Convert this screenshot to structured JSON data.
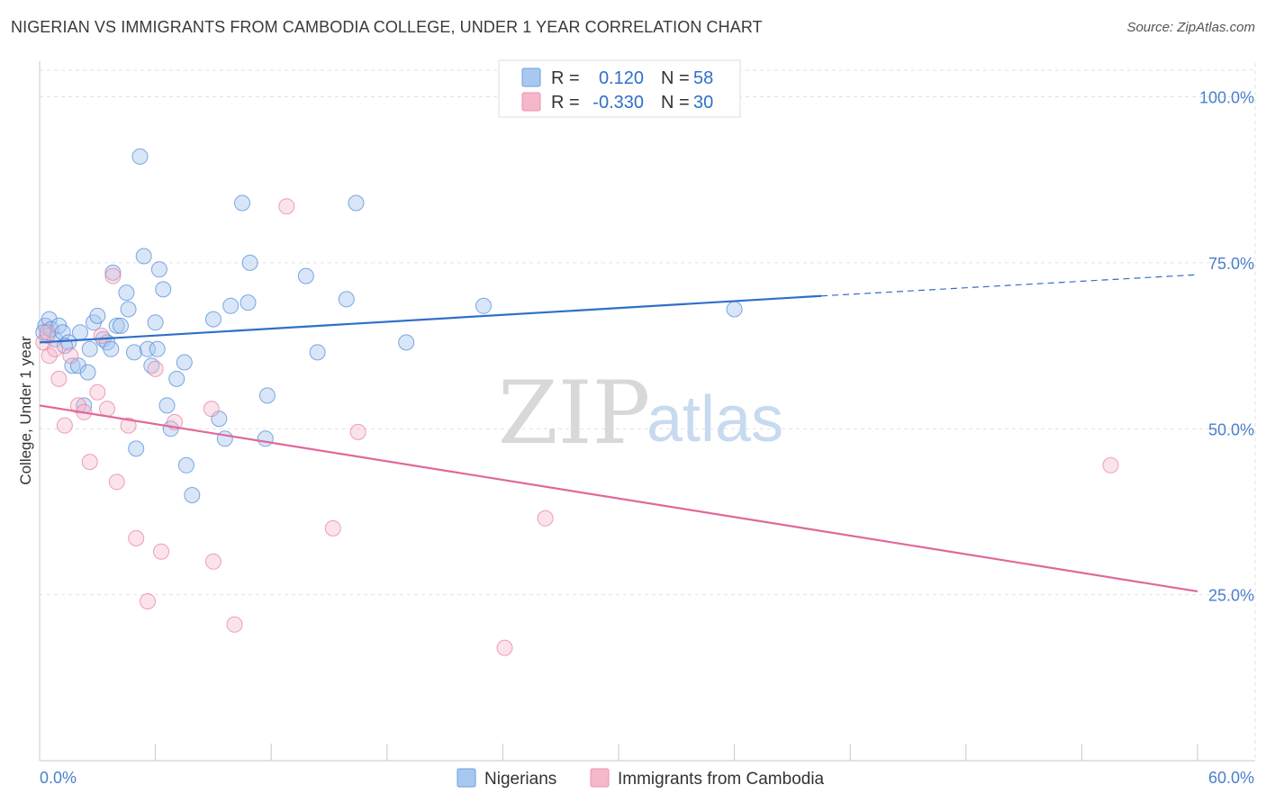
{
  "header": {
    "title": "NIGERIAN VS IMMIGRANTS FROM CAMBODIA COLLEGE, UNDER 1 YEAR CORRELATION CHART",
    "source": "Source: ZipAtlas.com"
  },
  "watermark": {
    "zip": "ZIP",
    "atlas": "atlas"
  },
  "legend": {
    "r_label": "R =",
    "n_label": "N =",
    "rows": [
      {
        "r": "0.120",
        "n": "58",
        "color": "#a9c8f0"
      },
      {
        "r": "-0.330",
        "n": "30",
        "color": "#f5b8cb"
      }
    ]
  },
  "bottom_legend": [
    "Nigerians",
    "Immigrants from Cambodia"
  ],
  "chart_data": {
    "type": "scatter",
    "title": "NIGERIAN VS IMMIGRANTS FROM CAMBODIA COLLEGE, UNDER 1 YEAR CORRELATION CHART",
    "xlabel": "",
    "ylabel": "College, Under 1 year",
    "xlim": [
      0,
      60
    ],
    "ylim": [
      0,
      104
    ],
    "x_tick_labels": [
      "0.0%",
      "60.0%"
    ],
    "y_ticks": [
      25,
      50,
      75,
      100
    ],
    "y_tick_labels": [
      "25.0%",
      "50.0%",
      "75.0%",
      "100.0%"
    ],
    "grid": true,
    "series": [
      {
        "name": "Nigerians",
        "color": "#4a86d8",
        "fill": "#a9c8f0",
        "trend": {
          "x0": 0,
          "y0": 63.0,
          "x1": 40.5,
          "y1": 70.0,
          "dash_to_x": 60,
          "dash_to_y": 73.2,
          "color": "#2f6fca"
        },
        "points": [
          [
            0.3,
            65.5
          ],
          [
            0.4,
            64.0
          ],
          [
            0.5,
            66.5
          ],
          [
            0.6,
            65.0
          ],
          [
            0.8,
            63.5
          ],
          [
            1.0,
            65.5
          ],
          [
            1.2,
            64.5
          ],
          [
            1.5,
            63.0
          ],
          [
            1.7,
            59.5
          ],
          [
            2.0,
            59.5
          ],
          [
            2.1,
            64.5
          ],
          [
            2.5,
            58.5
          ],
          [
            2.3,
            53.5
          ],
          [
            2.6,
            62.0
          ],
          [
            2.8,
            66.0
          ],
          [
            3.0,
            67.0
          ],
          [
            3.3,
            63.5
          ],
          [
            3.5,
            63.0
          ],
          [
            3.8,
            73.5
          ],
          [
            4.0,
            65.5
          ],
          [
            4.2,
            65.5
          ],
          [
            4.5,
            70.5
          ],
          [
            4.6,
            68.0
          ],
          [
            4.9,
            61.5
          ],
          [
            5.0,
            47.0
          ],
          [
            5.2,
            91.0
          ],
          [
            5.4,
            76.0
          ],
          [
            5.6,
            62.0
          ],
          [
            5.8,
            59.5
          ],
          [
            6.0,
            66.0
          ],
          [
            6.1,
            62.0
          ],
          [
            6.2,
            74.0
          ],
          [
            6.4,
            71.0
          ],
          [
            6.6,
            53.5
          ],
          [
            6.8,
            50.0
          ],
          [
            7.1,
            57.5
          ],
          [
            7.5,
            60.0
          ],
          [
            7.6,
            44.5
          ],
          [
            7.9,
            40.0
          ],
          [
            9.0,
            66.5
          ],
          [
            9.3,
            51.5
          ],
          [
            9.6,
            48.5
          ],
          [
            9.9,
            68.5
          ],
          [
            10.5,
            84.0
          ],
          [
            10.9,
            75.0
          ],
          [
            10.8,
            69.0
          ],
          [
            11.7,
            48.5
          ],
          [
            11.8,
            55.0
          ],
          [
            13.8,
            73.0
          ],
          [
            14.4,
            61.5
          ],
          [
            15.9,
            69.5
          ],
          [
            16.4,
            84.0
          ],
          [
            19.0,
            63.0
          ],
          [
            23.0,
            68.5
          ],
          [
            36.0,
            68.0
          ],
          [
            1.3,
            62.5
          ],
          [
            0.2,
            64.5
          ],
          [
            3.7,
            62.0
          ]
        ]
      },
      {
        "name": "Immigrants from Cambodia",
        "color": "#e8799f",
        "fill": "#f5b8cb",
        "trend": {
          "x0": 0,
          "y0": 53.5,
          "x1": 60,
          "y1": 25.5,
          "color": "#e0679a"
        },
        "points": [
          [
            0.2,
            63.0
          ],
          [
            0.4,
            64.5
          ],
          [
            0.5,
            61.0
          ],
          [
            0.8,
            62.0
          ],
          [
            1.0,
            57.5
          ],
          [
            1.3,
            50.5
          ],
          [
            1.6,
            61.0
          ],
          [
            2.0,
            53.5
          ],
          [
            2.3,
            52.5
          ],
          [
            2.6,
            45.0
          ],
          [
            3.0,
            55.5
          ],
          [
            3.2,
            64.0
          ],
          [
            3.5,
            53.0
          ],
          [
            3.8,
            73.0
          ],
          [
            4.0,
            42.0
          ],
          [
            4.6,
            50.5
          ],
          [
            5.0,
            33.5
          ],
          [
            5.6,
            24.0
          ],
          [
            6.0,
            59.0
          ],
          [
            6.3,
            31.5
          ],
          [
            7.0,
            51.0
          ],
          [
            8.9,
            53.0
          ],
          [
            9.0,
            30.0
          ],
          [
            10.1,
            20.5
          ],
          [
            12.8,
            83.5
          ],
          [
            15.2,
            35.0
          ],
          [
            16.5,
            49.5
          ],
          [
            24.1,
            17.0
          ],
          [
            26.2,
            36.5
          ],
          [
            55.5,
            44.5
          ]
        ]
      }
    ]
  }
}
